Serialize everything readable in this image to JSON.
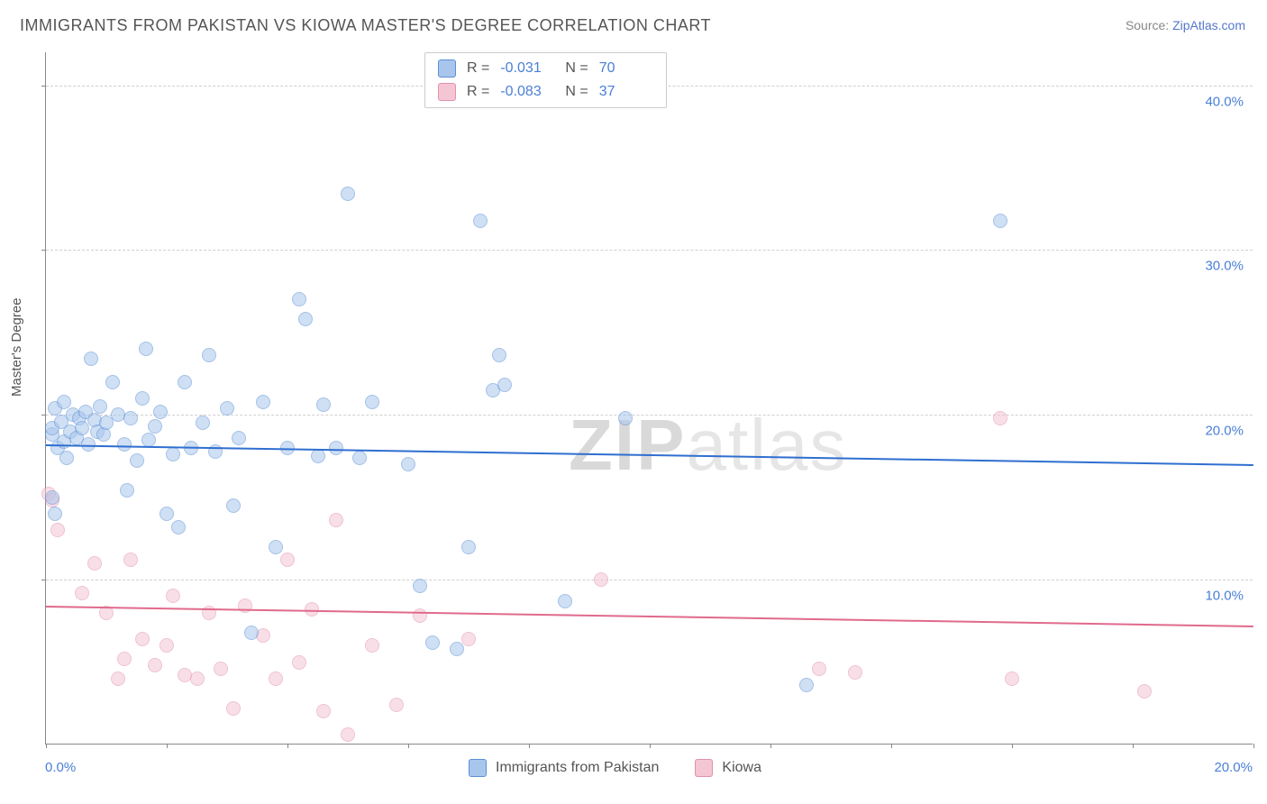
{
  "title": "IMMIGRANTS FROM PAKISTAN VS KIOWA MASTER'S DEGREE CORRELATION CHART",
  "source_prefix": "Source: ",
  "source_name": "ZipAtlas.com",
  "watermark_a": "ZIP",
  "watermark_b": "atlas",
  "yaxis_title": "Master's Degree",
  "chart": {
    "type": "scatter",
    "xlim": [
      0,
      20
    ],
    "ylim": [
      0,
      42
    ],
    "x_ticks_major": [
      0,
      2,
      4,
      6,
      8,
      10,
      12,
      14,
      16,
      18,
      20
    ],
    "x_tick_labels": {
      "0": "0.0%",
      "20": "20.0%"
    },
    "y_gridlines": [
      10,
      20,
      30,
      40
    ],
    "y_tick_labels": {
      "10": "10.0%",
      "20": "20.0%",
      "30": "30.0%",
      "40": "40.0%"
    },
    "background_color": "#ffffff",
    "grid_color": "#cfcfcf",
    "axis_color": "#888888",
    "label_color": "#4a7fd6",
    "marker_radius": 8,
    "marker_opacity": 0.55
  },
  "series1": {
    "name": "Immigrants from Pakistan",
    "marker_fill": "#a8c6ec",
    "marker_stroke": "#5b8fd6",
    "trend_color": "#2f6fd0",
    "trend_y_start": 18.2,
    "trend_y_end": 17.0,
    "R_label": "R =",
    "R": "-0.031",
    "N_label": "N =",
    "N": "70",
    "points": [
      [
        0.1,
        18.8
      ],
      [
        0.1,
        19.2
      ],
      [
        0.15,
        20.4
      ],
      [
        0.2,
        18.0
      ],
      [
        0.25,
        19.6
      ],
      [
        0.3,
        18.4
      ],
      [
        0.3,
        20.8
      ],
      [
        0.35,
        17.4
      ],
      [
        0.4,
        19.0
      ],
      [
        0.45,
        20.0
      ],
      [
        0.5,
        18.6
      ],
      [
        0.55,
        19.8
      ],
      [
        0.6,
        19.2
      ],
      [
        0.65,
        20.2
      ],
      [
        0.7,
        18.2
      ],
      [
        0.75,
        23.4
      ],
      [
        0.8,
        19.7
      ],
      [
        0.85,
        19.0
      ],
      [
        0.9,
        20.5
      ],
      [
        0.95,
        18.8
      ],
      [
        1.0,
        19.5
      ],
      [
        1.1,
        22.0
      ],
      [
        1.2,
        20.0
      ],
      [
        1.3,
        18.2
      ],
      [
        1.35,
        15.4
      ],
      [
        1.4,
        19.8
      ],
      [
        1.5,
        17.2
      ],
      [
        1.6,
        21.0
      ],
      [
        1.65,
        24.0
      ],
      [
        1.7,
        18.5
      ],
      [
        1.8,
        19.3
      ],
      [
        1.9,
        20.2
      ],
      [
        2.0,
        14.0
      ],
      [
        2.1,
        17.6
      ],
      [
        2.2,
        13.2
      ],
      [
        2.3,
        22.0
      ],
      [
        2.4,
        18.0
      ],
      [
        2.6,
        19.5
      ],
      [
        2.7,
        23.6
      ],
      [
        2.8,
        17.8
      ],
      [
        3.0,
        20.4
      ],
      [
        3.1,
        14.5
      ],
      [
        3.2,
        18.6
      ],
      [
        3.4,
        6.8
      ],
      [
        3.6,
        20.8
      ],
      [
        3.8,
        12.0
      ],
      [
        4.0,
        18.0
      ],
      [
        4.2,
        27.0
      ],
      [
        4.3,
        25.8
      ],
      [
        4.5,
        17.5
      ],
      [
        4.6,
        20.6
      ],
      [
        4.8,
        18.0
      ],
      [
        5.0,
        33.4
      ],
      [
        5.2,
        17.4
      ],
      [
        5.4,
        20.8
      ],
      [
        6.0,
        17.0
      ],
      [
        6.2,
        9.6
      ],
      [
        6.4,
        6.2
      ],
      [
        6.8,
        5.8
      ],
      [
        7.0,
        12.0
      ],
      [
        7.2,
        31.8
      ],
      [
        7.4,
        21.5
      ],
      [
        7.5,
        23.6
      ],
      [
        7.6,
        21.8
      ],
      [
        8.6,
        8.7
      ],
      [
        9.6,
        19.8
      ],
      [
        12.6,
        3.6
      ],
      [
        15.8,
        31.8
      ],
      [
        0.1,
        15.0
      ],
      [
        0.15,
        14.0
      ]
    ]
  },
  "series2": {
    "name": "Kiowa",
    "marker_fill": "#f4c6d4",
    "marker_stroke": "#e491ab",
    "trend_color": "#e06a8c",
    "trend_y_start": 8.4,
    "trend_y_end": 7.2,
    "R_label": "R =",
    "R": "-0.083",
    "N_label": "N =",
    "N": "37",
    "points": [
      [
        0.05,
        15.2
      ],
      [
        0.1,
        14.8
      ],
      [
        0.2,
        13.0
      ],
      [
        0.6,
        9.2
      ],
      [
        0.8,
        11.0
      ],
      [
        1.0,
        8.0
      ],
      [
        1.2,
        4.0
      ],
      [
        1.3,
        5.2
      ],
      [
        1.4,
        11.2
      ],
      [
        1.6,
        6.4
      ],
      [
        1.8,
        4.8
      ],
      [
        2.0,
        6.0
      ],
      [
        2.1,
        9.0
      ],
      [
        2.3,
        4.2
      ],
      [
        2.5,
        4.0
      ],
      [
        2.7,
        8.0
      ],
      [
        2.9,
        4.6
      ],
      [
        3.1,
        2.2
      ],
      [
        3.3,
        8.4
      ],
      [
        3.6,
        6.6
      ],
      [
        3.8,
        4.0
      ],
      [
        4.0,
        11.2
      ],
      [
        4.4,
        8.2
      ],
      [
        4.6,
        2.0
      ],
      [
        4.8,
        13.6
      ],
      [
        5.0,
        0.6
      ],
      [
        5.4,
        6.0
      ],
      [
        5.8,
        2.4
      ],
      [
        6.2,
        7.8
      ],
      [
        7.0,
        6.4
      ],
      [
        9.2,
        10.0
      ],
      [
        12.8,
        4.6
      ],
      [
        13.4,
        4.4
      ],
      [
        15.8,
        19.8
      ],
      [
        16.0,
        4.0
      ],
      [
        18.2,
        3.2
      ],
      [
        4.2,
        5.0
      ]
    ]
  }
}
